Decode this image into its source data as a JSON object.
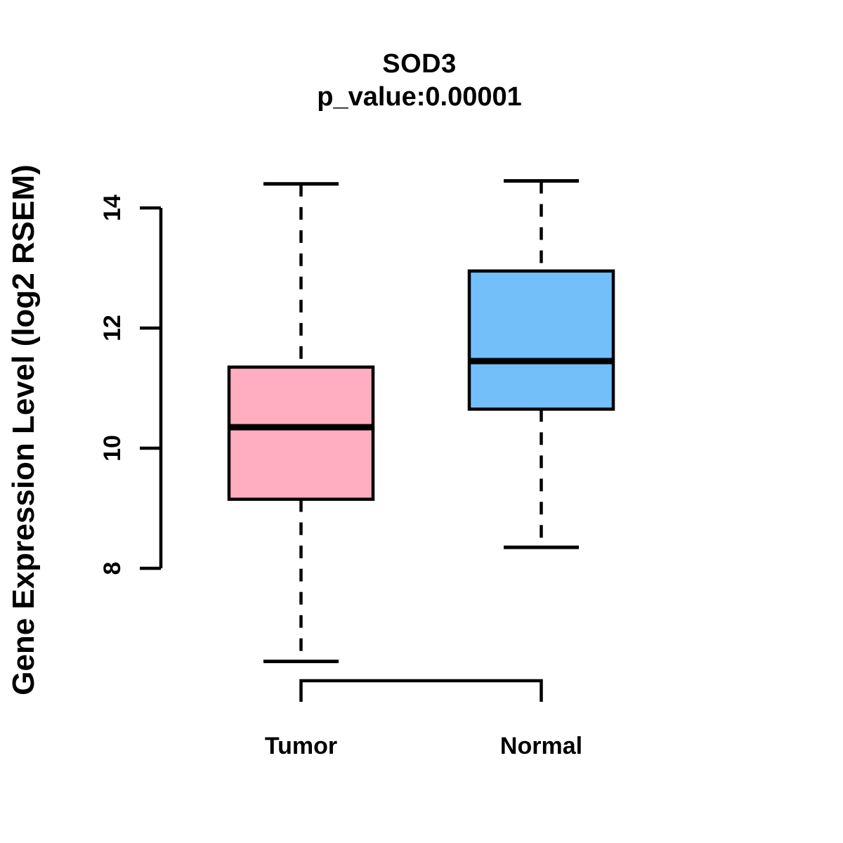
{
  "title": "SOD3",
  "subtitle": "p_value:0.00001",
  "chart_data": {
    "type": "boxplot",
    "title": "SOD3",
    "subtitle": "p_value:0.00001",
    "ylabel": "Gene Expression Level (log2 RSEM)",
    "xlabel": "",
    "y_ticks": [
      8,
      10,
      12,
      14
    ],
    "y_axis_range": [
      8,
      14
    ],
    "grid": false,
    "legend": false,
    "categories": [
      "Tumor",
      "Normal"
    ],
    "groups": [
      {
        "label": "Tumor",
        "fill_color": "#FFAEC1",
        "whisker_low": 6.45,
        "q1": 9.15,
        "median": 10.35,
        "q3": 11.35,
        "whisker_high": 14.4
      },
      {
        "label": "Normal",
        "fill_color": "#73BFFA",
        "whisker_low": 8.35,
        "q1": 10.65,
        "median": 11.45,
        "q3": 12.95,
        "whisker_high": 14.45
      }
    ]
  },
  "colors": {
    "stroke": "#000000",
    "background": "#FFFFFF"
  }
}
